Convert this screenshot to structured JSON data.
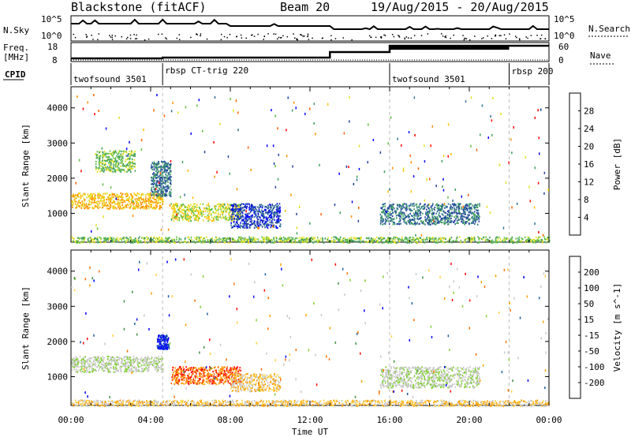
{
  "header": {
    "title": "Blackstone (fitACF)",
    "beam": "Beam 20",
    "dates": "19/Aug/2015 - 20/Aug/2015"
  },
  "status_panel": {
    "nsky_label": "N.Sky",
    "nsearch_label": "N.Search",
    "freq_label": "Freq.",
    "freq_unit": "[MHz]",
    "nave_label": "Nave",
    "cpid_label": "CPID",
    "left_top_tick": "10^5",
    "left_bottom_tick": "10^0",
    "right_top_tick": "10^5",
    "right_bottom_tick": "10^0",
    "freq_top_tick": "18",
    "freq_bottom_tick": "8",
    "nave_top_tick": "60",
    "nave_bottom_tick": "0",
    "cpid_segments": [
      {
        "label": "twofsound 3501",
        "start": 0,
        "end": 4.6
      },
      {
        "label": "rbsp CT-trig 220",
        "start": 4.6,
        "end": 16.0
      },
      {
        "label": "twofsound 3501",
        "start": 16.0,
        "end": 22.0
      },
      {
        "label": "rbsp 200",
        "start": 22.0,
        "end": 24.0
      }
    ]
  },
  "chart_data": [
    {
      "type": "heatmap",
      "title": "Power",
      "ylabel": "Slant Range [km]",
      "xlabel": "Time UT",
      "xlim": [
        0,
        24
      ],
      "ylim": [
        180,
        4600
      ],
      "y_ticks": [
        "1000",
        "2000",
        "3000",
        "4000"
      ],
      "x_ticks": [
        "00:00",
        "04:00",
        "08:00",
        "12:00",
        "16:00",
        "20:00",
        "00:00"
      ],
      "colorbar": {
        "label": "Power [dB]",
        "ticks": [
          "4",
          "8",
          "12",
          "16",
          "20",
          "24",
          "28"
        ],
        "colors": [
          "#0000ff",
          "#1f3f9f",
          "#2f6f8f",
          "#3f9f5f",
          "#5fbf3f",
          "#dfdf1f",
          "#ffbf00",
          "#ff8f00",
          "#ff5f00",
          "#ff0000"
        ]
      },
      "series": [
        {
          "start": 0.0,
          "end": 4.6,
          "range_lo": 1150,
          "range_hi": 1600,
          "level": 6
        },
        {
          "start": 1.2,
          "end": 3.2,
          "range_lo": 2200,
          "range_hi": 2800,
          "level": 4
        },
        {
          "start": 4.0,
          "end": 5.0,
          "range_lo": 1500,
          "range_hi": 2500,
          "level": 2
        },
        {
          "start": 5.0,
          "end": 8.5,
          "range_lo": 800,
          "range_hi": 1300,
          "level": 5
        },
        {
          "start": 8.0,
          "end": 10.5,
          "range_lo": 600,
          "range_hi": 1300,
          "level": 1
        },
        {
          "start": 15.5,
          "end": 20.5,
          "range_lo": 700,
          "range_hi": 1300,
          "level": 2
        },
        {
          "start": 0.0,
          "end": 24.0,
          "range_lo": 180,
          "range_hi": 350,
          "level": 4
        }
      ]
    },
    {
      "type": "heatmap",
      "title": "Velocity",
      "ylabel": "Slant Range [km]",
      "xlabel": "Time UT",
      "xlim": [
        0,
        24
      ],
      "ylim": [
        180,
        4600
      ],
      "y_ticks": [
        "1000",
        "2000",
        "3000",
        "4000"
      ],
      "x_ticks": [
        "00:00",
        "04:00",
        "08:00",
        "12:00",
        "16:00",
        "20:00",
        "00:00"
      ],
      "colorbar": {
        "label": "Velocity [m s^-1]",
        "ticks": [
          "200",
          "100",
          "50",
          "15",
          "-15",
          "-50",
          "-100",
          "-200"
        ],
        "colors": [
          "#0000ff",
          "#1f5f9f",
          "#3f8f3f",
          "#7fcf2f",
          "#c8c8c8",
          "#c8c8c8",
          "#ffcf3f",
          "#ff9f00",
          "#ff6f00",
          "#ff0000"
        ]
      },
      "series": [
        {
          "start": 0.0,
          "end": 4.6,
          "range_lo": 1150,
          "range_hi": 1600,
          "level": 4
        },
        {
          "start": 4.3,
          "end": 4.9,
          "range_lo": 1800,
          "range_hi": 2200,
          "level": 0
        },
        {
          "start": 5.0,
          "end": 8.5,
          "range_lo": 800,
          "range_hi": 1300,
          "level": 8
        },
        {
          "start": 8.0,
          "end": 10.5,
          "range_lo": 600,
          "range_hi": 1100,
          "level": 6
        },
        {
          "start": 15.5,
          "end": 20.5,
          "range_lo": 700,
          "range_hi": 1300,
          "level": 4
        },
        {
          "start": 0.0,
          "end": 24.0,
          "range_lo": 180,
          "range_hi": 350,
          "level": 6
        }
      ]
    }
  ]
}
